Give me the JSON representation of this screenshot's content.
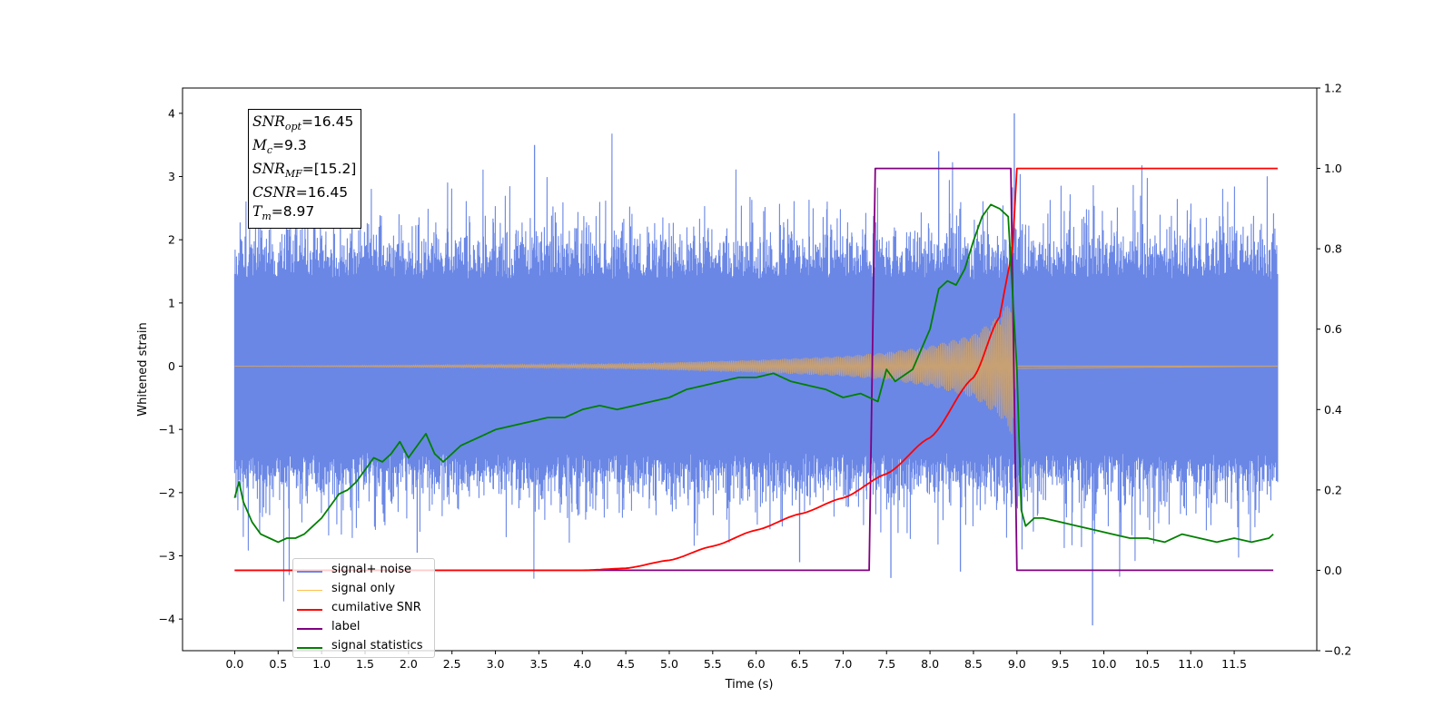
{
  "chart_data": {
    "type": "line",
    "xlabel": "Time (s)",
    "ylabel": "Whitened strain",
    "ylabel_right": "",
    "xlim": [
      -0.6,
      12.45
    ],
    "ylim": [
      -4.5,
      4.4
    ],
    "ylim_right": [
      -0.2,
      1.2
    ],
    "x_ticks": [
      "0.0",
      "0.5",
      "1.0",
      "1.5",
      "2.0",
      "2.5",
      "3.0",
      "3.5",
      "4.0",
      "4.5",
      "5.0",
      "5.5",
      "6.0",
      "6.5",
      "7.0",
      "7.5",
      "8.0",
      "8.5",
      "9.0",
      "9.5",
      "10.0",
      "10.5",
      "11.0",
      "11.5"
    ],
    "y_ticks": [
      "4",
      "3",
      "2",
      "1",
      "0",
      "−1",
      "−2",
      "−3",
      "−4"
    ],
    "y_ticks_right": [
      "1.2",
      "1.0",
      "0.8",
      "0.6",
      "0.4",
      "0.2",
      "0.0",
      "−0.2"
    ],
    "annotation": {
      "snr_opt": {
        "label": "SNR",
        "sub": "opt",
        "value": "=16.45"
      },
      "mc": {
        "label": "M",
        "sub": "c",
        "value": "=9.3"
      },
      "snr_mf": {
        "label": "SNR",
        "sub": "MF",
        "value": "=[15.2]"
      },
      "csnr": {
        "label": "CSNR",
        "value": "=16.45"
      },
      "tm": {
        "label": "T",
        "sub": "m",
        "value": "=8.97"
      }
    },
    "legend_position": "lower-left",
    "series": [
      {
        "name": "signal+ noise",
        "color": "#6a87e6",
        "axis": "left",
        "x_range": [
          0.0,
          12.0
        ],
        "envelope": [
          -2.4,
          2.4
        ],
        "peak_max": 4.0,
        "peak_min": -4.1
      },
      {
        "name": "signal only",
        "color": "#c7a074",
        "axis": "left",
        "x_range": [
          0.0,
          9.0
        ],
        "x": [
          0.0,
          4.0,
          5.0,
          6.0,
          7.0,
          7.5,
          8.0,
          8.5,
          8.8,
          8.95,
          9.0
        ],
        "amplitude": [
          0.0,
          0.03,
          0.06,
          0.1,
          0.16,
          0.22,
          0.32,
          0.5,
          0.8,
          1.1,
          0.0
        ]
      },
      {
        "name": "cumilative SNR",
        "color": "#ff0000",
        "axis": "right",
        "x": [
          0.0,
          4.0,
          4.5,
          5.0,
          5.5,
          6.0,
          6.5,
          7.0,
          7.5,
          8.0,
          8.5,
          8.8,
          8.95,
          9.0,
          12.0
        ],
        "values": [
          0.0,
          0.0,
          0.005,
          0.025,
          0.06,
          0.1,
          0.14,
          0.18,
          0.24,
          0.33,
          0.48,
          0.63,
          0.8,
          1.0,
          1.0
        ]
      },
      {
        "name": "label",
        "color": "#800080",
        "axis": "right",
        "x": [
          0.0,
          7.3,
          7.37,
          8.93,
          9.0,
          11.95
        ],
        "values": [
          0.0,
          0.0,
          1.0,
          1.0,
          0.0,
          0.0
        ]
      },
      {
        "name": "signal statistics",
        "color": "#008000",
        "axis": "right",
        "x": [
          0.0,
          0.05,
          0.1,
          0.2,
          0.3,
          0.4,
          0.5,
          0.6,
          0.7,
          0.8,
          0.9,
          1.0,
          1.1,
          1.2,
          1.3,
          1.4,
          1.5,
          1.6,
          1.7,
          1.8,
          1.9,
          2.0,
          2.1,
          2.2,
          2.3,
          2.4,
          2.5,
          2.6,
          2.8,
          3.0,
          3.2,
          3.4,
          3.6,
          3.8,
          4.0,
          4.2,
          4.4,
          4.6,
          4.8,
          5.0,
          5.2,
          5.4,
          5.6,
          5.8,
          6.0,
          6.2,
          6.4,
          6.6,
          6.8,
          7.0,
          7.2,
          7.4,
          7.5,
          7.6,
          7.8,
          7.9,
          8.0,
          8.1,
          8.2,
          8.3,
          8.4,
          8.5,
          8.6,
          8.7,
          8.8,
          8.9,
          9.0,
          9.05,
          9.1,
          9.2,
          9.3,
          9.5,
          9.7,
          9.9,
          10.1,
          10.3,
          10.5,
          10.7,
          10.9,
          11.1,
          11.3,
          11.5,
          11.7,
          11.9,
          11.95
        ],
        "values": [
          0.18,
          0.22,
          0.17,
          0.12,
          0.09,
          0.08,
          0.07,
          0.08,
          0.08,
          0.09,
          0.11,
          0.13,
          0.16,
          0.19,
          0.2,
          0.22,
          0.25,
          0.28,
          0.27,
          0.29,
          0.32,
          0.28,
          0.31,
          0.34,
          0.29,
          0.27,
          0.29,
          0.31,
          0.33,
          0.35,
          0.36,
          0.37,
          0.38,
          0.38,
          0.4,
          0.41,
          0.4,
          0.41,
          0.42,
          0.43,
          0.45,
          0.46,
          0.47,
          0.48,
          0.48,
          0.49,
          0.47,
          0.46,
          0.45,
          0.43,
          0.44,
          0.42,
          0.5,
          0.47,
          0.5,
          0.55,
          0.6,
          0.7,
          0.72,
          0.71,
          0.75,
          0.82,
          0.88,
          0.91,
          0.9,
          0.88,
          0.5,
          0.15,
          0.11,
          0.13,
          0.13,
          0.12,
          0.11,
          0.1,
          0.09,
          0.08,
          0.08,
          0.07,
          0.09,
          0.08,
          0.07,
          0.08,
          0.07,
          0.08,
          0.09
        ]
      }
    ]
  }
}
